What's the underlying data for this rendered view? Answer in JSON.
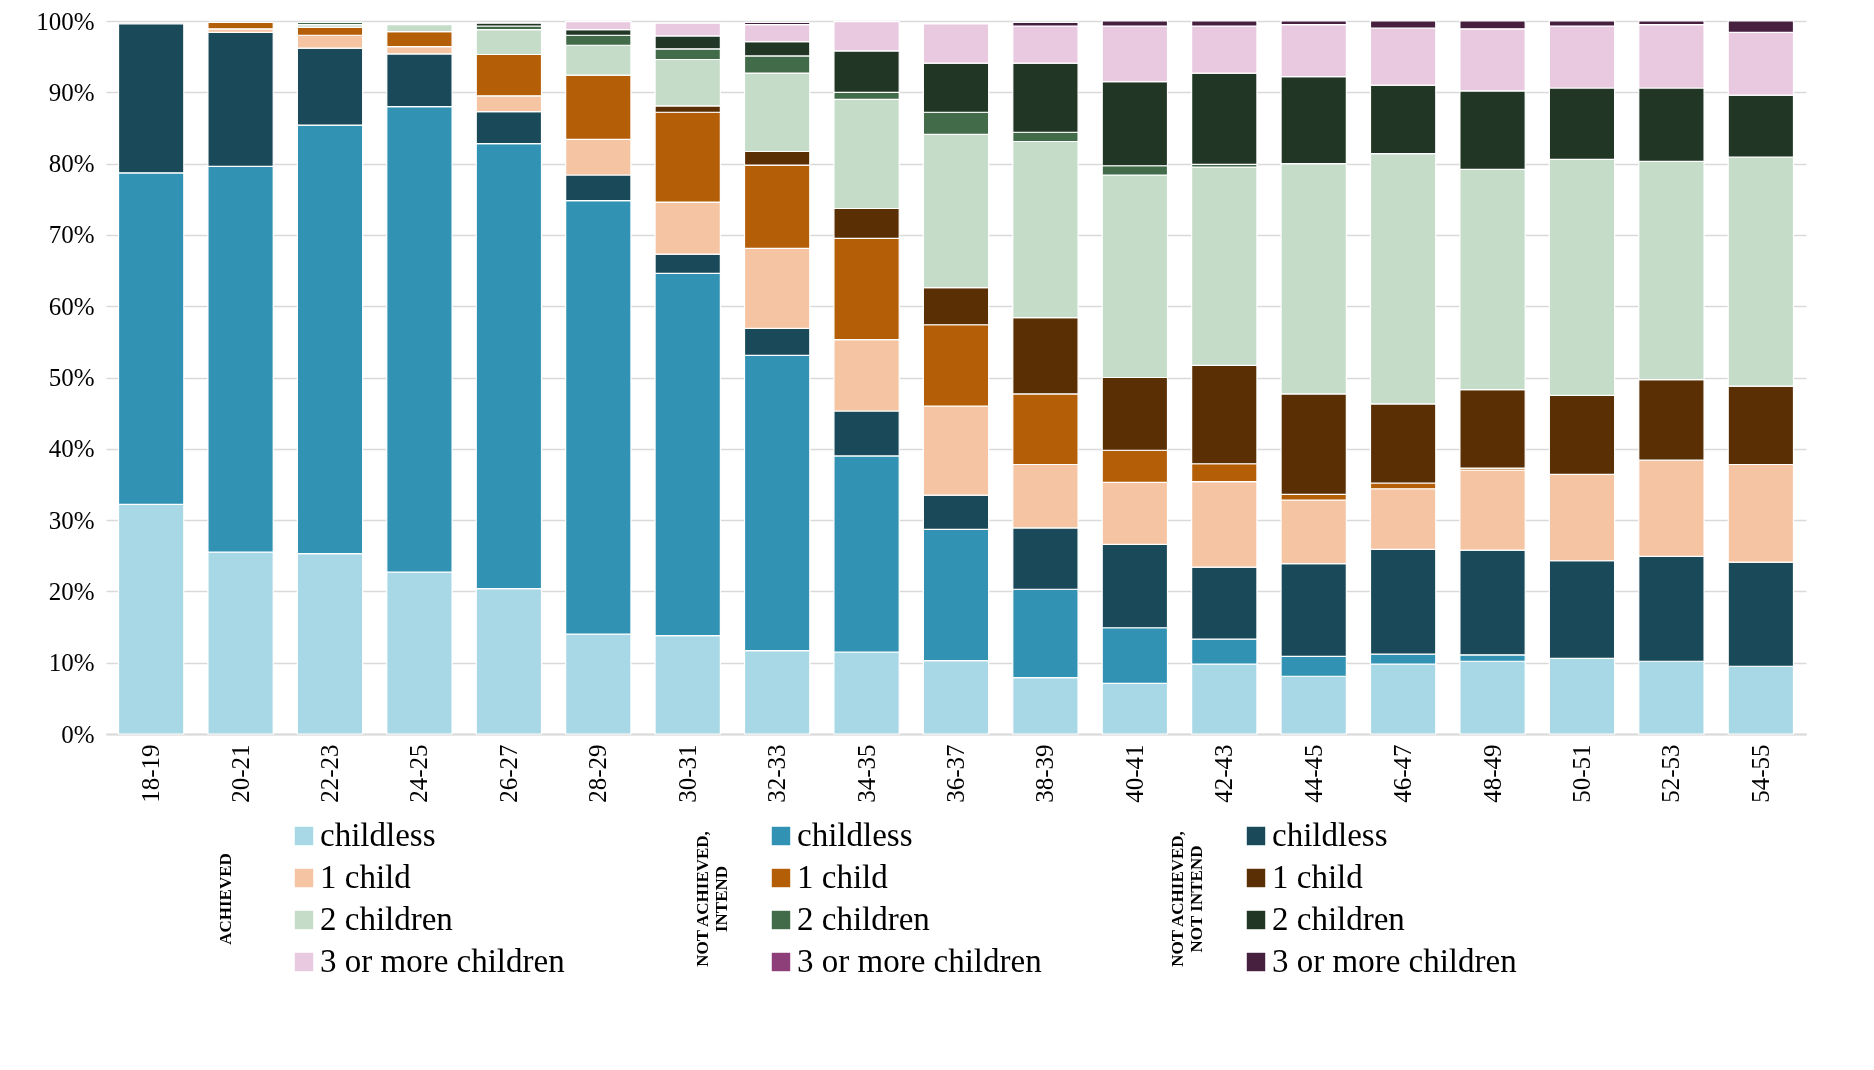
{
  "chart_data": {
    "type": "bar",
    "stacked": true,
    "legend": "bottom",
    "grid": "y",
    "categories": [
      "18-19",
      "20-21",
      "22-23",
      "24-25",
      "26-27",
      "28-29",
      "30-31",
      "32-33",
      "34-35",
      "36-37",
      "38-39",
      "40-41",
      "42-43",
      "44-45",
      "46-47",
      "48-49",
      "50-51",
      "52-53",
      "54-55"
    ],
    "ylim": [
      0,
      100
    ],
    "yticks": [
      {
        "value": 0,
        "label": "0%"
      },
      {
        "value": 10,
        "label": "10%"
      },
      {
        "value": 20,
        "label": "20%"
      },
      {
        "value": 30,
        "label": "30%"
      },
      {
        "value": 40,
        "label": "40%"
      },
      {
        "value": 50,
        "label": "50%"
      },
      {
        "value": 60,
        "label": "60%"
      },
      {
        "value": 70,
        "label": "70%"
      },
      {
        "value": 80,
        "label": "80%"
      },
      {
        "value": 90,
        "label": "90%"
      },
      {
        "value": 100,
        "label": "100%"
      }
    ],
    "annotations": [
      "ACHIEVED",
      "NOT ACHIEVED, INTEND",
      "NOT ACHIEVED, NOT INTEND"
    ],
    "series": [
      {
        "name": "childless",
        "color": "#a8d7e5",
        "values": [
          32.2,
          25.5,
          25.3,
          22.7,
          20.4,
          14.0,
          13.8,
          11.7,
          11.5,
          10.3,
          7.9,
          7.1,
          9.8,
          8.1,
          9.8,
          10.2,
          10.6,
          10.2,
          9.5
        ]
      },
      {
        "name": "childless",
        "color": "#3192b3",
        "values": [
          46.5,
          54.1,
          60.1,
          65.3,
          62.4,
          60.8,
          50.8,
          41.4,
          27.5,
          18.4,
          12.4,
          7.8,
          3.5,
          2.8,
          1.4,
          0.9,
          null,
          null,
          null
        ]
      },
      {
        "name": "childless",
        "color": "#1a4a5a",
        "values": [
          20.9,
          18.8,
          10.8,
          7.4,
          4.5,
          3.6,
          2.7,
          3.8,
          6.3,
          4.8,
          8.6,
          11.7,
          10.1,
          13.0,
          14.7,
          14.7,
          13.7,
          14.7,
          14.6
        ]
      },
      {
        "name": "1 child",
        "color": "#f5c4a3",
        "values": [
          null,
          0.5,
          1.8,
          1.0,
          2.2,
          5.0,
          7.3,
          11.2,
          10.0,
          12.5,
          8.9,
          8.7,
          12.0,
          8.9,
          8.5,
          11.2,
          12.1,
          13.5,
          13.7
        ]
      },
      {
        "name": "1 child",
        "color": "#b45e08",
        "values": [
          null,
          0.9,
          1.1,
          2.1,
          5.8,
          9.0,
          12.6,
          11.7,
          14.2,
          11.4,
          9.9,
          4.5,
          2.5,
          0.8,
          0.8,
          0.3,
          null,
          null,
          null
        ]
      },
      {
        "name": "1 child",
        "color": "#5a2f04",
        "values": [
          null,
          null,
          null,
          null,
          null,
          null,
          0.9,
          1.9,
          4.2,
          5.2,
          10.7,
          10.2,
          13.8,
          14.1,
          11.1,
          11.0,
          11.1,
          11.3,
          11.0
        ]
      },
      {
        "name": "2 children",
        "color": "#c5dcc9",
        "values": [
          null,
          null,
          0.4,
          1.0,
          3.5,
          4.2,
          6.5,
          11.0,
          15.3,
          21.5,
          24.7,
          28.4,
          27.8,
          32.3,
          35.1,
          30.9,
          33.1,
          30.6,
          32.1
        ]
      },
      {
        "name": "2 children",
        "color": "#426b4a",
        "values": [
          null,
          null,
          0.3,
          null,
          0.5,
          1.4,
          1.5,
          2.4,
          1.0,
          3.1,
          1.3,
          1.3,
          0.4,
          null,
          null,
          null,
          null,
          null,
          null
        ]
      },
      {
        "name": "2 children",
        "color": "#213625",
        "values": [
          null,
          null,
          null,
          null,
          0.4,
          0.8,
          1.8,
          2.0,
          5.8,
          6.9,
          9.7,
          11.8,
          12.8,
          12.2,
          9.6,
          11.0,
          10.0,
          10.3,
          8.7
        ]
      },
      {
        "name": "3 or more children",
        "color": "#e9c9e0",
        "values": [
          null,
          null,
          null,
          null,
          null,
          1.1,
          1.8,
          2.4,
          4.1,
          5.5,
          5.2,
          7.8,
          6.6,
          7.3,
          8.0,
          8.7,
          8.7,
          8.9,
          8.8
        ]
      },
      {
        "name": "3 or more children",
        "color": "#8e3e78",
        "values": [
          null,
          null,
          null,
          null,
          null,
          null,
          null,
          null,
          null,
          null,
          null,
          null,
          null,
          null,
          null,
          null,
          null,
          null,
          null
        ]
      },
      {
        "name": "3 or more children",
        "color": "#472040",
        "values": [
          null,
          null,
          null,
          null,
          null,
          null,
          null,
          0.3,
          null,
          null,
          0.5,
          0.7,
          0.7,
          0.5,
          1.0,
          1.1,
          0.7,
          0.5,
          1.6
        ]
      }
    ]
  }
}
